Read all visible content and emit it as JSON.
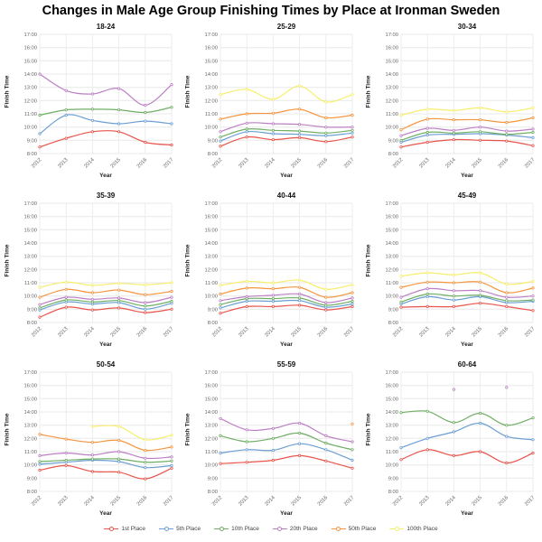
{
  "page": {
    "title": "Changes in Male Age Group Finishing Times by Place at Ironman Sweden"
  },
  "legend": {
    "position": "bottom",
    "items": [
      {
        "label": "1st Place",
        "color": "#e8544b"
      },
      {
        "label": "5th Place",
        "color": "#6b9fd4"
      },
      {
        "label": "10th Place",
        "color": "#6fae64"
      },
      {
        "label": "20th Place",
        "color": "#bc7fc4"
      },
      {
        "label": "50th Place",
        "color": "#f5953f"
      },
      {
        "label": "100th Place",
        "color": "#f6ee6c"
      }
    ]
  },
  "chart_data": [
    {
      "type": "line",
      "title": "18-24",
      "xlabel": "Year",
      "ylabel": "Finish Time",
      "x": [
        2012,
        2013,
        2014,
        2015,
        2016,
        2017
      ],
      "ylim": [
        8,
        17
      ],
      "grid": true,
      "ytick_labels": [
        "8:00",
        "9:00",
        "10:00",
        "11:00",
        "12:00",
        "13:00",
        "14:00",
        "15:00",
        "16:00",
        "17:00"
      ],
      "series": [
        {
          "name": "1st Place",
          "color": "#e8544b",
          "values": [
            8.5,
            9.15,
            9.65,
            9.65,
            8.85,
            8.65
          ]
        },
        {
          "name": "5th Place",
          "color": "#6b9fd4",
          "values": [
            9.5,
            10.9,
            10.5,
            10.25,
            10.45,
            10.25
          ]
        },
        {
          "name": "10th Place",
          "color": "#6fae64",
          "values": [
            10.9,
            11.3,
            11.35,
            11.3,
            11.1,
            11.5
          ]
        },
        {
          "name": "20th Place",
          "color": "#bc7fc4",
          "values": [
            14.0,
            12.75,
            12.5,
            12.9,
            11.65,
            13.2
          ]
        }
      ]
    },
    {
      "type": "line",
      "title": "25-29",
      "xlabel": "Year",
      "ylabel": "Finish Time",
      "x": [
        2012,
        2013,
        2014,
        2015,
        2016,
        2017
      ],
      "ylim": [
        8,
        17
      ],
      "grid": true,
      "ytick_labels": [
        "8:00",
        "9:00",
        "10:00",
        "11:00",
        "12:00",
        "13:00",
        "14:00",
        "15:00",
        "16:00",
        "17:00"
      ],
      "series": [
        {
          "name": "1st Place",
          "color": "#e8544b",
          "values": [
            8.55,
            9.25,
            9.05,
            9.2,
            8.9,
            9.25
          ]
        },
        {
          "name": "5th Place",
          "color": "#6b9fd4",
          "values": [
            8.95,
            9.65,
            9.5,
            9.45,
            9.35,
            9.55
          ]
        },
        {
          "name": "10th Place",
          "color": "#6fae64",
          "values": [
            9.25,
            9.85,
            9.75,
            9.7,
            9.55,
            9.75
          ]
        },
        {
          "name": "20th Place",
          "color": "#bc7fc4",
          "values": [
            9.65,
            10.3,
            10.25,
            10.2,
            10.0,
            10.0
          ]
        },
        {
          "name": "50th Place",
          "color": "#f5953f",
          "values": [
            10.6,
            11.0,
            11.05,
            11.35,
            10.7,
            10.9
          ]
        },
        {
          "name": "100th Place",
          "color": "#f6ee6c",
          "values": [
            12.45,
            12.85,
            12.1,
            13.1,
            11.9,
            12.45
          ]
        }
      ]
    },
    {
      "type": "line",
      "title": "30-34",
      "xlabel": "Year",
      "ylabel": "Finish Time",
      "x": [
        2012,
        2013,
        2014,
        2015,
        2016,
        2017
      ],
      "ylim": [
        8,
        17
      ],
      "grid": true,
      "ytick_labels": [
        "8:00",
        "9:00",
        "10:00",
        "11:00",
        "12:00",
        "13:00",
        "14:00",
        "15:00",
        "16:00",
        "17:00"
      ],
      "series": [
        {
          "name": "1st Place",
          "color": "#e8544b",
          "values": [
            8.5,
            8.85,
            9.05,
            9.0,
            8.95,
            8.6
          ]
        },
        {
          "name": "5th Place",
          "color": "#6b9fd4",
          "values": [
            8.85,
            9.4,
            9.45,
            9.5,
            9.4,
            9.2
          ]
        },
        {
          "name": "10th Place",
          "color": "#6fae64",
          "values": [
            9.0,
            9.6,
            9.55,
            9.65,
            9.45,
            9.6
          ]
        },
        {
          "name": "20th Place",
          "color": "#bc7fc4",
          "values": [
            9.35,
            9.9,
            9.75,
            10.0,
            9.7,
            9.85
          ]
        },
        {
          "name": "50th Place",
          "color": "#f5953f",
          "values": [
            9.8,
            10.6,
            10.55,
            10.55,
            10.35,
            10.7
          ]
        },
        {
          "name": "100th Place",
          "color": "#f6ee6c",
          "values": [
            10.9,
            11.35,
            11.25,
            11.45,
            11.15,
            11.45
          ]
        }
      ]
    },
    {
      "type": "line",
      "title": "35-39",
      "xlabel": "Year",
      "ylabel": "Finish Time",
      "x": [
        2012,
        2013,
        2014,
        2015,
        2016,
        2017
      ],
      "ylim": [
        8,
        17
      ],
      "grid": true,
      "ytick_labels": [
        "8:00",
        "9:00",
        "10:00",
        "11:00",
        "12:00",
        "13:00",
        "14:00",
        "15:00",
        "16:00",
        "17:00"
      ],
      "series": [
        {
          "name": "1st Place",
          "color": "#e8544b",
          "values": [
            8.4,
            9.15,
            8.95,
            9.1,
            8.75,
            9.0
          ]
        },
        {
          "name": "5th Place",
          "color": "#6b9fd4",
          "values": [
            8.95,
            9.55,
            9.4,
            9.5,
            9.0,
            9.45
          ]
        },
        {
          "name": "10th Place",
          "color": "#6fae64",
          "values": [
            9.1,
            9.7,
            9.55,
            9.65,
            9.25,
            9.6
          ]
        },
        {
          "name": "20th Place",
          "color": "#bc7fc4",
          "values": [
            9.35,
            9.9,
            9.75,
            9.85,
            9.5,
            9.9
          ]
        },
        {
          "name": "50th Place",
          "color": "#f5953f",
          "values": [
            9.9,
            10.5,
            10.25,
            10.45,
            10.1,
            10.35
          ]
        },
        {
          "name": "100th Place",
          "color": "#f6ee6c",
          "values": [
            10.65,
            11.05,
            10.8,
            10.95,
            10.85,
            11.0
          ]
        }
      ]
    },
    {
      "type": "line",
      "title": "40-44",
      "xlabel": "Year",
      "ylabel": "Finish Time",
      "x": [
        2012,
        2013,
        2014,
        2015,
        2016,
        2017
      ],
      "ylim": [
        8,
        17
      ],
      "grid": true,
      "ytick_labels": [
        "8:00",
        "9:00",
        "10:00",
        "11:00",
        "12:00",
        "13:00",
        "14:00",
        "15:00",
        "16:00",
        "17:00"
      ],
      "series": [
        {
          "name": "1st Place",
          "color": "#e8544b",
          "values": [
            8.7,
            9.2,
            9.2,
            9.3,
            8.95,
            9.2
          ]
        },
        {
          "name": "5th Place",
          "color": "#6b9fd4",
          "values": [
            9.1,
            9.6,
            9.6,
            9.65,
            9.15,
            9.4
          ]
        },
        {
          "name": "10th Place",
          "color": "#6fae64",
          "values": [
            9.35,
            9.8,
            9.8,
            9.85,
            9.3,
            9.6
          ]
        },
        {
          "name": "20th Place",
          "color": "#bc7fc4",
          "values": [
            9.65,
            9.95,
            10.05,
            10.15,
            9.5,
            9.85
          ]
        },
        {
          "name": "50th Place",
          "color": "#f5953f",
          "values": [
            10.15,
            10.6,
            10.55,
            10.65,
            9.9,
            10.25
          ]
        },
        {
          "name": "100th Place",
          "color": "#f6ee6c",
          "values": [
            10.8,
            11.1,
            11.0,
            11.2,
            10.5,
            10.85
          ]
        }
      ]
    },
    {
      "type": "line",
      "title": "45-49",
      "xlabel": "Year",
      "ylabel": "Finish Time",
      "x": [
        2012,
        2013,
        2014,
        2015,
        2016,
        2017
      ],
      "ylim": [
        8,
        17
      ],
      "grid": true,
      "ytick_labels": [
        "8:00",
        "9:00",
        "10:00",
        "11:00",
        "12:00",
        "13:00",
        "14:00",
        "15:00",
        "16:00",
        "17:00"
      ],
      "series": [
        {
          "name": "1st Place",
          "color": "#e8544b",
          "values": [
            9.15,
            9.2,
            9.2,
            9.45,
            9.2,
            8.9
          ]
        },
        {
          "name": "5th Place",
          "color": "#6b9fd4",
          "values": [
            9.4,
            9.95,
            9.7,
            9.95,
            9.5,
            9.6
          ]
        },
        {
          "name": "10th Place",
          "color": "#6fae64",
          "values": [
            9.55,
            10.15,
            10.0,
            10.05,
            9.65,
            9.7
          ]
        },
        {
          "name": "20th Place",
          "color": "#bc7fc4",
          "values": [
            9.9,
            10.55,
            10.4,
            10.4,
            9.9,
            10.0
          ]
        },
        {
          "name": "50th Place",
          "color": "#f5953f",
          "values": [
            10.65,
            11.05,
            11.0,
            11.05,
            10.25,
            10.6
          ]
        },
        {
          "name": "100th Place",
          "color": "#f6ee6c",
          "values": [
            11.5,
            11.75,
            11.6,
            11.75,
            10.9,
            11.1
          ]
        }
      ]
    },
    {
      "type": "line",
      "title": "50-54",
      "xlabel": "Year",
      "ylabel": "Finish Time",
      "x": [
        2012,
        2013,
        2014,
        2015,
        2016,
        2017
      ],
      "ylim": [
        8,
        17
      ],
      "grid": true,
      "ytick_labels": [
        "8:00",
        "9:00",
        "10:00",
        "11:00",
        "12:00",
        "13:00",
        "14:00",
        "15:00",
        "16:00",
        "17:00"
      ],
      "series": [
        {
          "name": "1st Place",
          "color": "#e8544b",
          "values": [
            9.6,
            9.95,
            9.5,
            9.45,
            8.95,
            9.75
          ]
        },
        {
          "name": "5th Place",
          "color": "#6b9fd4",
          "values": [
            10.05,
            10.2,
            10.35,
            10.25,
            9.8,
            9.95
          ]
        },
        {
          "name": "10th Place",
          "color": "#6fae64",
          "values": [
            10.25,
            10.35,
            10.45,
            10.45,
            10.2,
            10.3
          ]
        },
        {
          "name": "20th Place",
          "color": "#bc7fc4",
          "values": [
            10.7,
            10.9,
            10.75,
            11.0,
            10.5,
            10.6
          ]
        },
        {
          "name": "50th Place",
          "color": "#f5953f",
          "values": [
            12.3,
            11.95,
            11.7,
            11.85,
            11.1,
            11.35
          ]
        },
        {
          "name": "100th Place",
          "color": "#f6ee6c",
          "values": [
            null,
            null,
            12.9,
            12.9,
            11.9,
            12.25
          ]
        }
      ]
    },
    {
      "type": "line",
      "title": "55-59",
      "xlabel": "Year",
      "ylabel": "Finish Time",
      "x": [
        2012,
        2013,
        2014,
        2015,
        2016,
        2017
      ],
      "ylim": [
        8,
        17
      ],
      "grid": true,
      "ytick_labels": [
        "8:00",
        "9:00",
        "10:00",
        "11:00",
        "12:00",
        "13:00",
        "14:00",
        "15:00",
        "16:00",
        "17:00"
      ],
      "series": [
        {
          "name": "1st Place",
          "color": "#e8544b",
          "values": [
            10.1,
            10.2,
            10.35,
            10.7,
            10.3,
            9.75
          ]
        },
        {
          "name": "5th Place",
          "color": "#6b9fd4",
          "values": [
            10.9,
            11.15,
            11.1,
            11.6,
            11.15,
            10.35
          ]
        },
        {
          "name": "10th Place",
          "color": "#6fae64",
          "values": [
            12.2,
            11.75,
            12.0,
            12.4,
            11.65,
            11.15
          ]
        },
        {
          "name": "20th Place",
          "color": "#bc7fc4",
          "values": [
            13.5,
            12.65,
            12.75,
            13.15,
            12.2,
            11.75
          ]
        },
        {
          "name": "50th Place",
          "color": "#f5953f",
          "values": [
            null,
            null,
            null,
            null,
            null,
            13.1
          ]
        }
      ]
    },
    {
      "type": "line",
      "title": "60-64",
      "xlabel": "Year",
      "ylabel": "Finish Time",
      "x": [
        2012,
        2013,
        2014,
        2015,
        2016,
        2017
      ],
      "ylim": [
        8,
        17
      ],
      "grid": true,
      "ytick_labels": [
        "8:00",
        "9:00",
        "10:00",
        "11:00",
        "12:00",
        "13:00",
        "14:00",
        "15:00",
        "16:00",
        "17:00"
      ],
      "series": [
        {
          "name": "1st Place",
          "color": "#e8544b",
          "values": [
            10.4,
            11.15,
            10.7,
            11.0,
            10.15,
            10.9
          ]
        },
        {
          "name": "5th Place",
          "color": "#6b9fd4",
          "values": [
            11.3,
            12.0,
            12.5,
            13.15,
            12.15,
            11.9
          ]
        },
        {
          "name": "10th Place",
          "color": "#6fae64",
          "values": [
            13.95,
            14.05,
            13.2,
            13.9,
            13.0,
            13.55
          ]
        },
        {
          "name": "20th Place",
          "color": "#bc7fc4",
          "values": [
            null,
            null,
            15.7,
            null,
            15.85,
            null
          ]
        }
      ]
    }
  ]
}
